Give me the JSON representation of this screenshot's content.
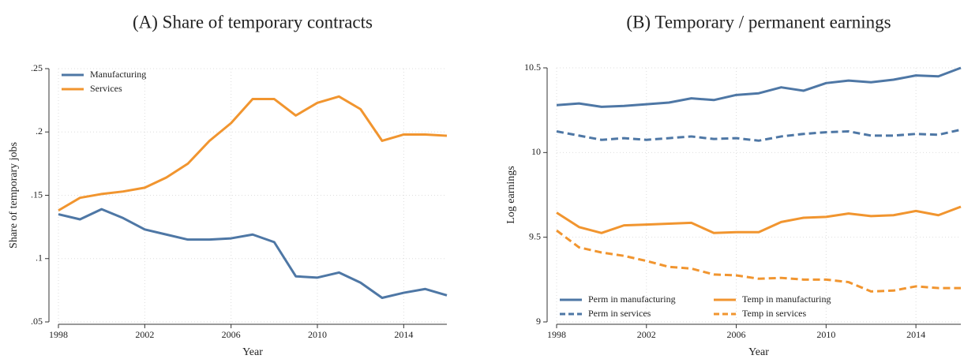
{
  "chart_data": [
    {
      "type": "line",
      "title": "(A) Share of temporary contracts",
      "x_label": "Year",
      "y_label": "Share of temporary jobs",
      "x": [
        1998,
        1999,
        2000,
        2001,
        2002,
        2003,
        2004,
        2005,
        2006,
        2007,
        2008,
        2009,
        2010,
        2011,
        2012,
        2013,
        2014,
        2015,
        2016
      ],
      "xlim": [
        1998,
        2016
      ],
      "xticks": [
        1998,
        2002,
        2006,
        2010,
        2014
      ],
      "ylim": [
        0.05,
        0.25
      ],
      "yticks": [
        {
          "value": 0.05,
          "label": ".05"
        },
        {
          "value": 0.1,
          "label": ".1"
        },
        {
          "value": 0.15,
          "label": ".15"
        },
        {
          "value": 0.2,
          "label": ".2"
        },
        {
          "value": 0.25,
          "label": ".25"
        }
      ],
      "grid": true,
      "legend_loc": "upper left",
      "legend_columns": 1,
      "series": [
        {
          "name": "Manufacturing",
          "color": "#4e77a5",
          "line_style": "solid",
          "values": [
            0.135,
            0.131,
            0.139,
            0.132,
            0.123,
            0.119,
            0.115,
            0.115,
            0.116,
            0.119,
            0.113,
            0.086,
            0.085,
            0.089,
            0.081,
            0.069,
            0.073,
            0.076,
            0.071
          ]
        },
        {
          "name": "Services",
          "color": "#f1952f",
          "line_style": "solid",
          "values": [
            0.138,
            0.148,
            0.151,
            0.153,
            0.156,
            0.164,
            0.175,
            0.193,
            0.207,
            0.226,
            0.226,
            0.213,
            0.223,
            0.228,
            0.218,
            0.193,
            0.198,
            0.198,
            0.197
          ]
        }
      ]
    },
    {
      "type": "line",
      "title": "(B) Temporary / permanent earnings",
      "x_label": "Year",
      "y_label": "Log earnings",
      "x": [
        1998,
        1999,
        2000,
        2001,
        2002,
        2003,
        2004,
        2005,
        2006,
        2007,
        2008,
        2009,
        2010,
        2011,
        2012,
        2013,
        2014,
        2015,
        2016
      ],
      "xlim": [
        1998,
        2016
      ],
      "xticks": [
        1998,
        2002,
        2006,
        2010,
        2014
      ],
      "ylim": [
        9,
        10.5
      ],
      "yticks": [
        9,
        9.5,
        10,
        10.5
      ],
      "grid": true,
      "legend_loc": "lower left",
      "legend_columns": 2,
      "series": [
        {
          "name": "Perm in manufacturing",
          "color": "#4e77a5",
          "line_style": "solid",
          "values": [
            10.28,
            10.29,
            10.27,
            10.275,
            10.285,
            10.295,
            10.32,
            10.31,
            10.34,
            10.35,
            10.385,
            10.365,
            10.41,
            10.425,
            10.415,
            10.43,
            10.455,
            10.45,
            10.5
          ]
        },
        {
          "name": "Perm in services",
          "color": "#4e77a5",
          "line_style": "dashed",
          "values": [
            10.125,
            10.1,
            10.075,
            10.085,
            10.075,
            10.085,
            10.095,
            10.08,
            10.085,
            10.07,
            10.095,
            10.11,
            10.12,
            10.125,
            10.1,
            10.1,
            10.11,
            10.105,
            10.135
          ]
        },
        {
          "name": "Temp in manufacturing",
          "color": "#f1952f",
          "line_style": "solid",
          "values": [
            9.645,
            9.56,
            9.525,
            9.57,
            9.575,
            9.58,
            9.585,
            9.525,
            9.53,
            9.53,
            9.59,
            9.615,
            9.62,
            9.64,
            9.625,
            9.63,
            9.655,
            9.63,
            9.68
          ]
        },
        {
          "name": "Temp in services",
          "color": "#f1952f",
          "line_style": "dashed",
          "values": [
            9.54,
            9.44,
            9.41,
            9.39,
            9.36,
            9.325,
            9.315,
            9.28,
            9.275,
            9.255,
            9.26,
            9.25,
            9.25,
            9.235,
            9.18,
            9.185,
            9.21,
            9.2,
            9.2
          ]
        }
      ]
    }
  ]
}
